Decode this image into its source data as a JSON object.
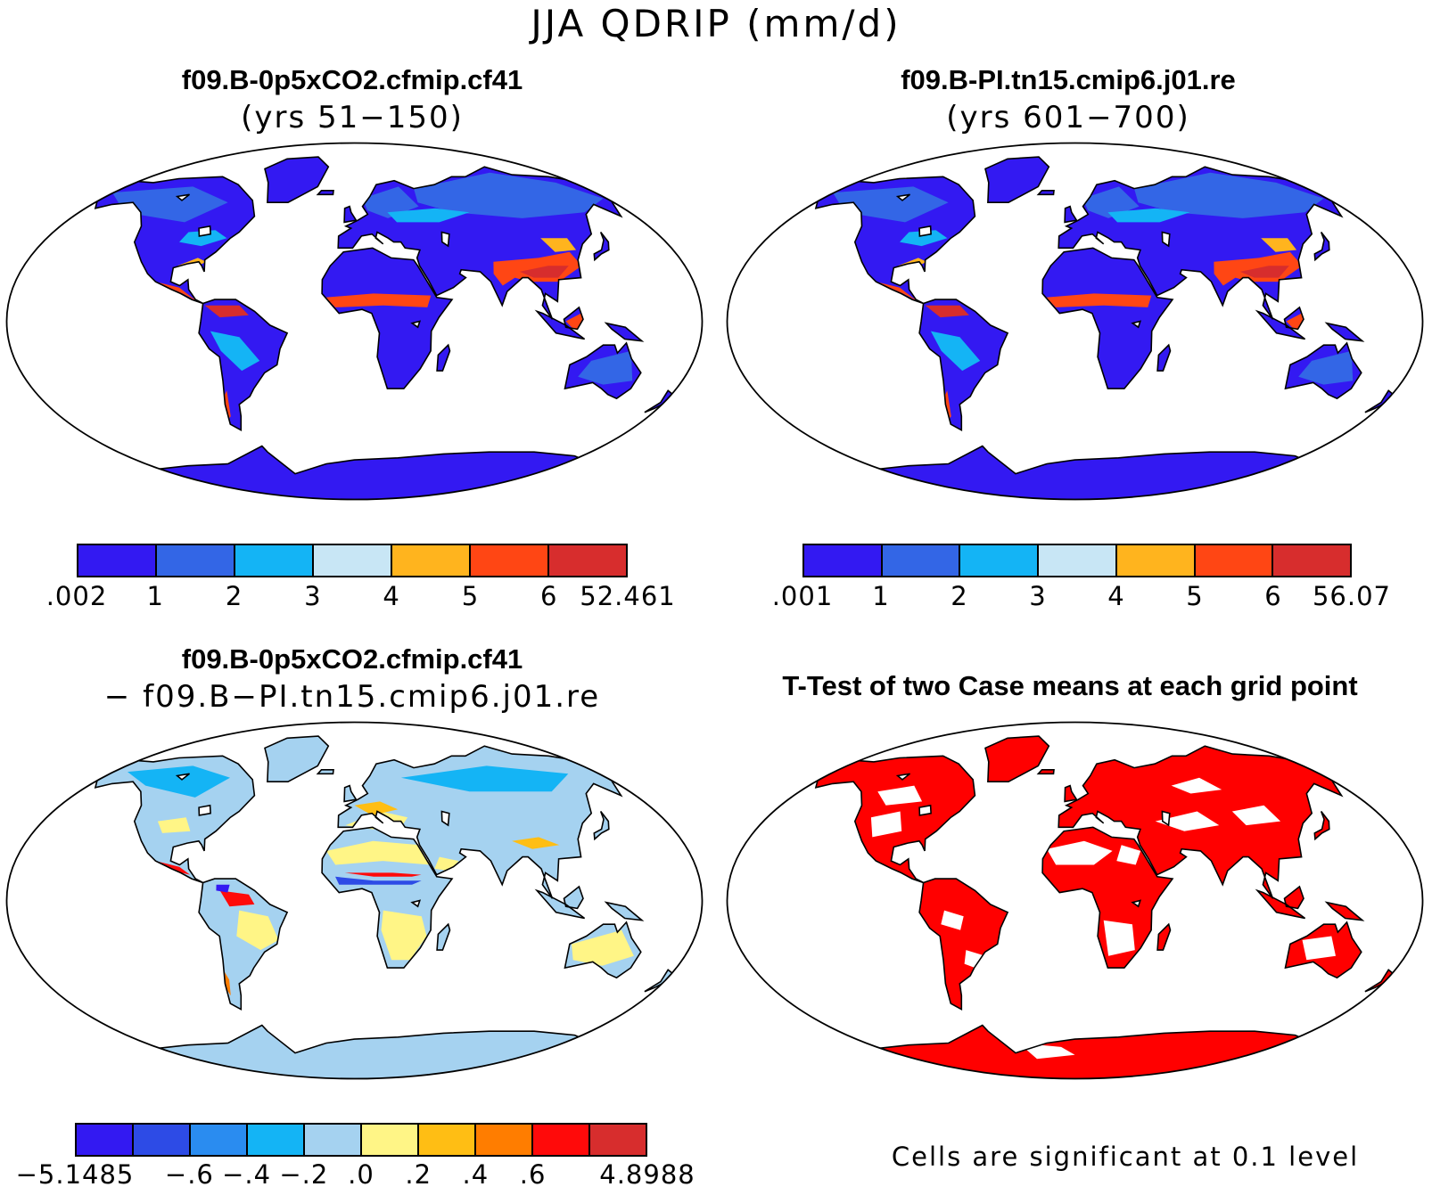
{
  "title": "JJA QDRIP (mm/d)",
  "panels": [
    {
      "id": "case1",
      "title": "f09.B-0p5xCO2.cfmip.cf41",
      "subtitle": "(yrs 51−150)",
      "base_color": "#3319f2",
      "colorbar": {
        "colors": [
          "#3319f2",
          "#3366e6",
          "#14b4f5",
          "#c8e6f5",
          "#ffb41e",
          "#ff4614",
          "#d72d2d"
        ],
        "labels": [
          ".002",
          "1",
          "2",
          "3",
          "4",
          "5",
          "6",
          "52.461"
        ]
      }
    },
    {
      "id": "case2",
      "title": "f09.B-PI.tn15.cmip6.j01.re",
      "subtitle": "(yrs 601−700)",
      "base_color": "#3319f2",
      "colorbar": {
        "colors": [
          "#3319f2",
          "#3366e6",
          "#14b4f5",
          "#c8e6f5",
          "#ffb41e",
          "#ff4614",
          "#d72d2d"
        ],
        "labels": [
          ".001",
          "1",
          "2",
          "3",
          "4",
          "5",
          "6",
          "56.07"
        ]
      }
    },
    {
      "id": "diff",
      "title": "f09.B-0p5xCO2.cfmip.cf41",
      "subtitle": "− f09.B−PI.tn15.cmip6.j01.re",
      "base_color": "#a5d2f0",
      "colorbar": {
        "colors": [
          "#3319f2",
          "#2d4be6",
          "#2a8cf0",
          "#14b4f5",
          "#a5d2f0",
          "#fff586",
          "#ffbe14",
          "#ff7d00",
          "#ff0a0a",
          "#d72d2d"
        ],
        "labels": [
          "−5.1485",
          "−.6",
          "−.4",
          "−.2",
          ".0",
          ".2",
          ".4",
          ".6",
          "4.8988"
        ],
        "label_fracs": [
          0,
          0.2,
          0.3,
          0.4,
          0.5,
          0.6,
          0.7,
          0.8,
          1.0
        ]
      }
    },
    {
      "id": "ttest",
      "title": "T-Test of two Case means at each grid point",
      "base_color": "#ff0000",
      "note": "Cells are significant at 0.1 level"
    }
  ]
}
